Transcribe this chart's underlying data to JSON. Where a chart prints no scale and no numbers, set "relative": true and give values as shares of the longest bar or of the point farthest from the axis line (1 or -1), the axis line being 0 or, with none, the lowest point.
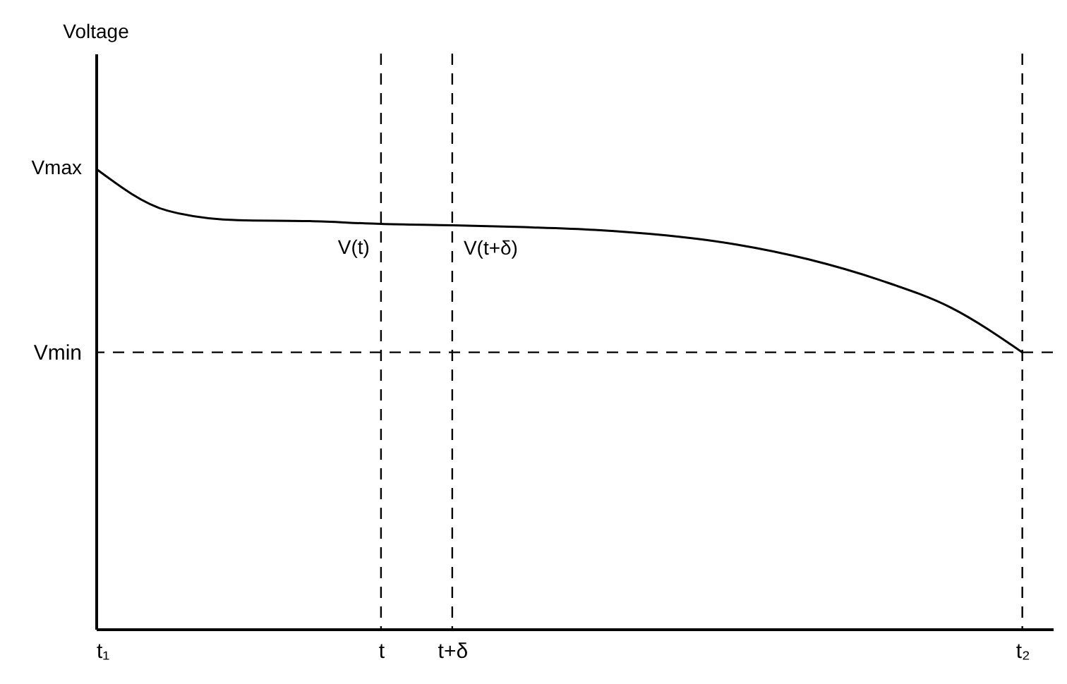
{
  "chart_data": {
    "type": "line",
    "relative": true,
    "categories": [
      "t₁",
      null,
      null,
      null,
      "t",
      "t+δ",
      null,
      null,
      null,
      null,
      null,
      null,
      null,
      "t₂"
    ],
    "series": [
      {
        "color": "#000000",
        "values": [
          1,
          0.909,
          0.888,
          0.886,
          0.88,
          0.877,
          0.873,
          0.867,
          0.855,
          0.835,
          0.803,
          0.758,
          0.698,
          0.601
        ]
      }
    ],
    "ref_lines": [
      {
        "axis": "x",
        "value": "t",
        "line_style": "dashed"
      },
      {
        "axis": "x",
        "value": "t+δ",
        "line_style": "dashed"
      },
      {
        "axis": "y",
        "value": 0.601,
        "label": "Vmin",
        "line_style": "dashed"
      },
      {
        "axis": "x",
        "value": "t₂",
        "line_style": "dashed"
      }
    ],
    "annotations": [
      "Voltage",
      {
        "text": "Vmax",
        "x": "t₁",
        "y": 1
      },
      {
        "text": "V(t)",
        "x": "t",
        "y": 0.88
      },
      {
        "text": "V(t+δ)",
        "x": "t+δ",
        "y": 0.877
      }
    ],
    "marker": "none",
    "line_style": "solid"
  }
}
